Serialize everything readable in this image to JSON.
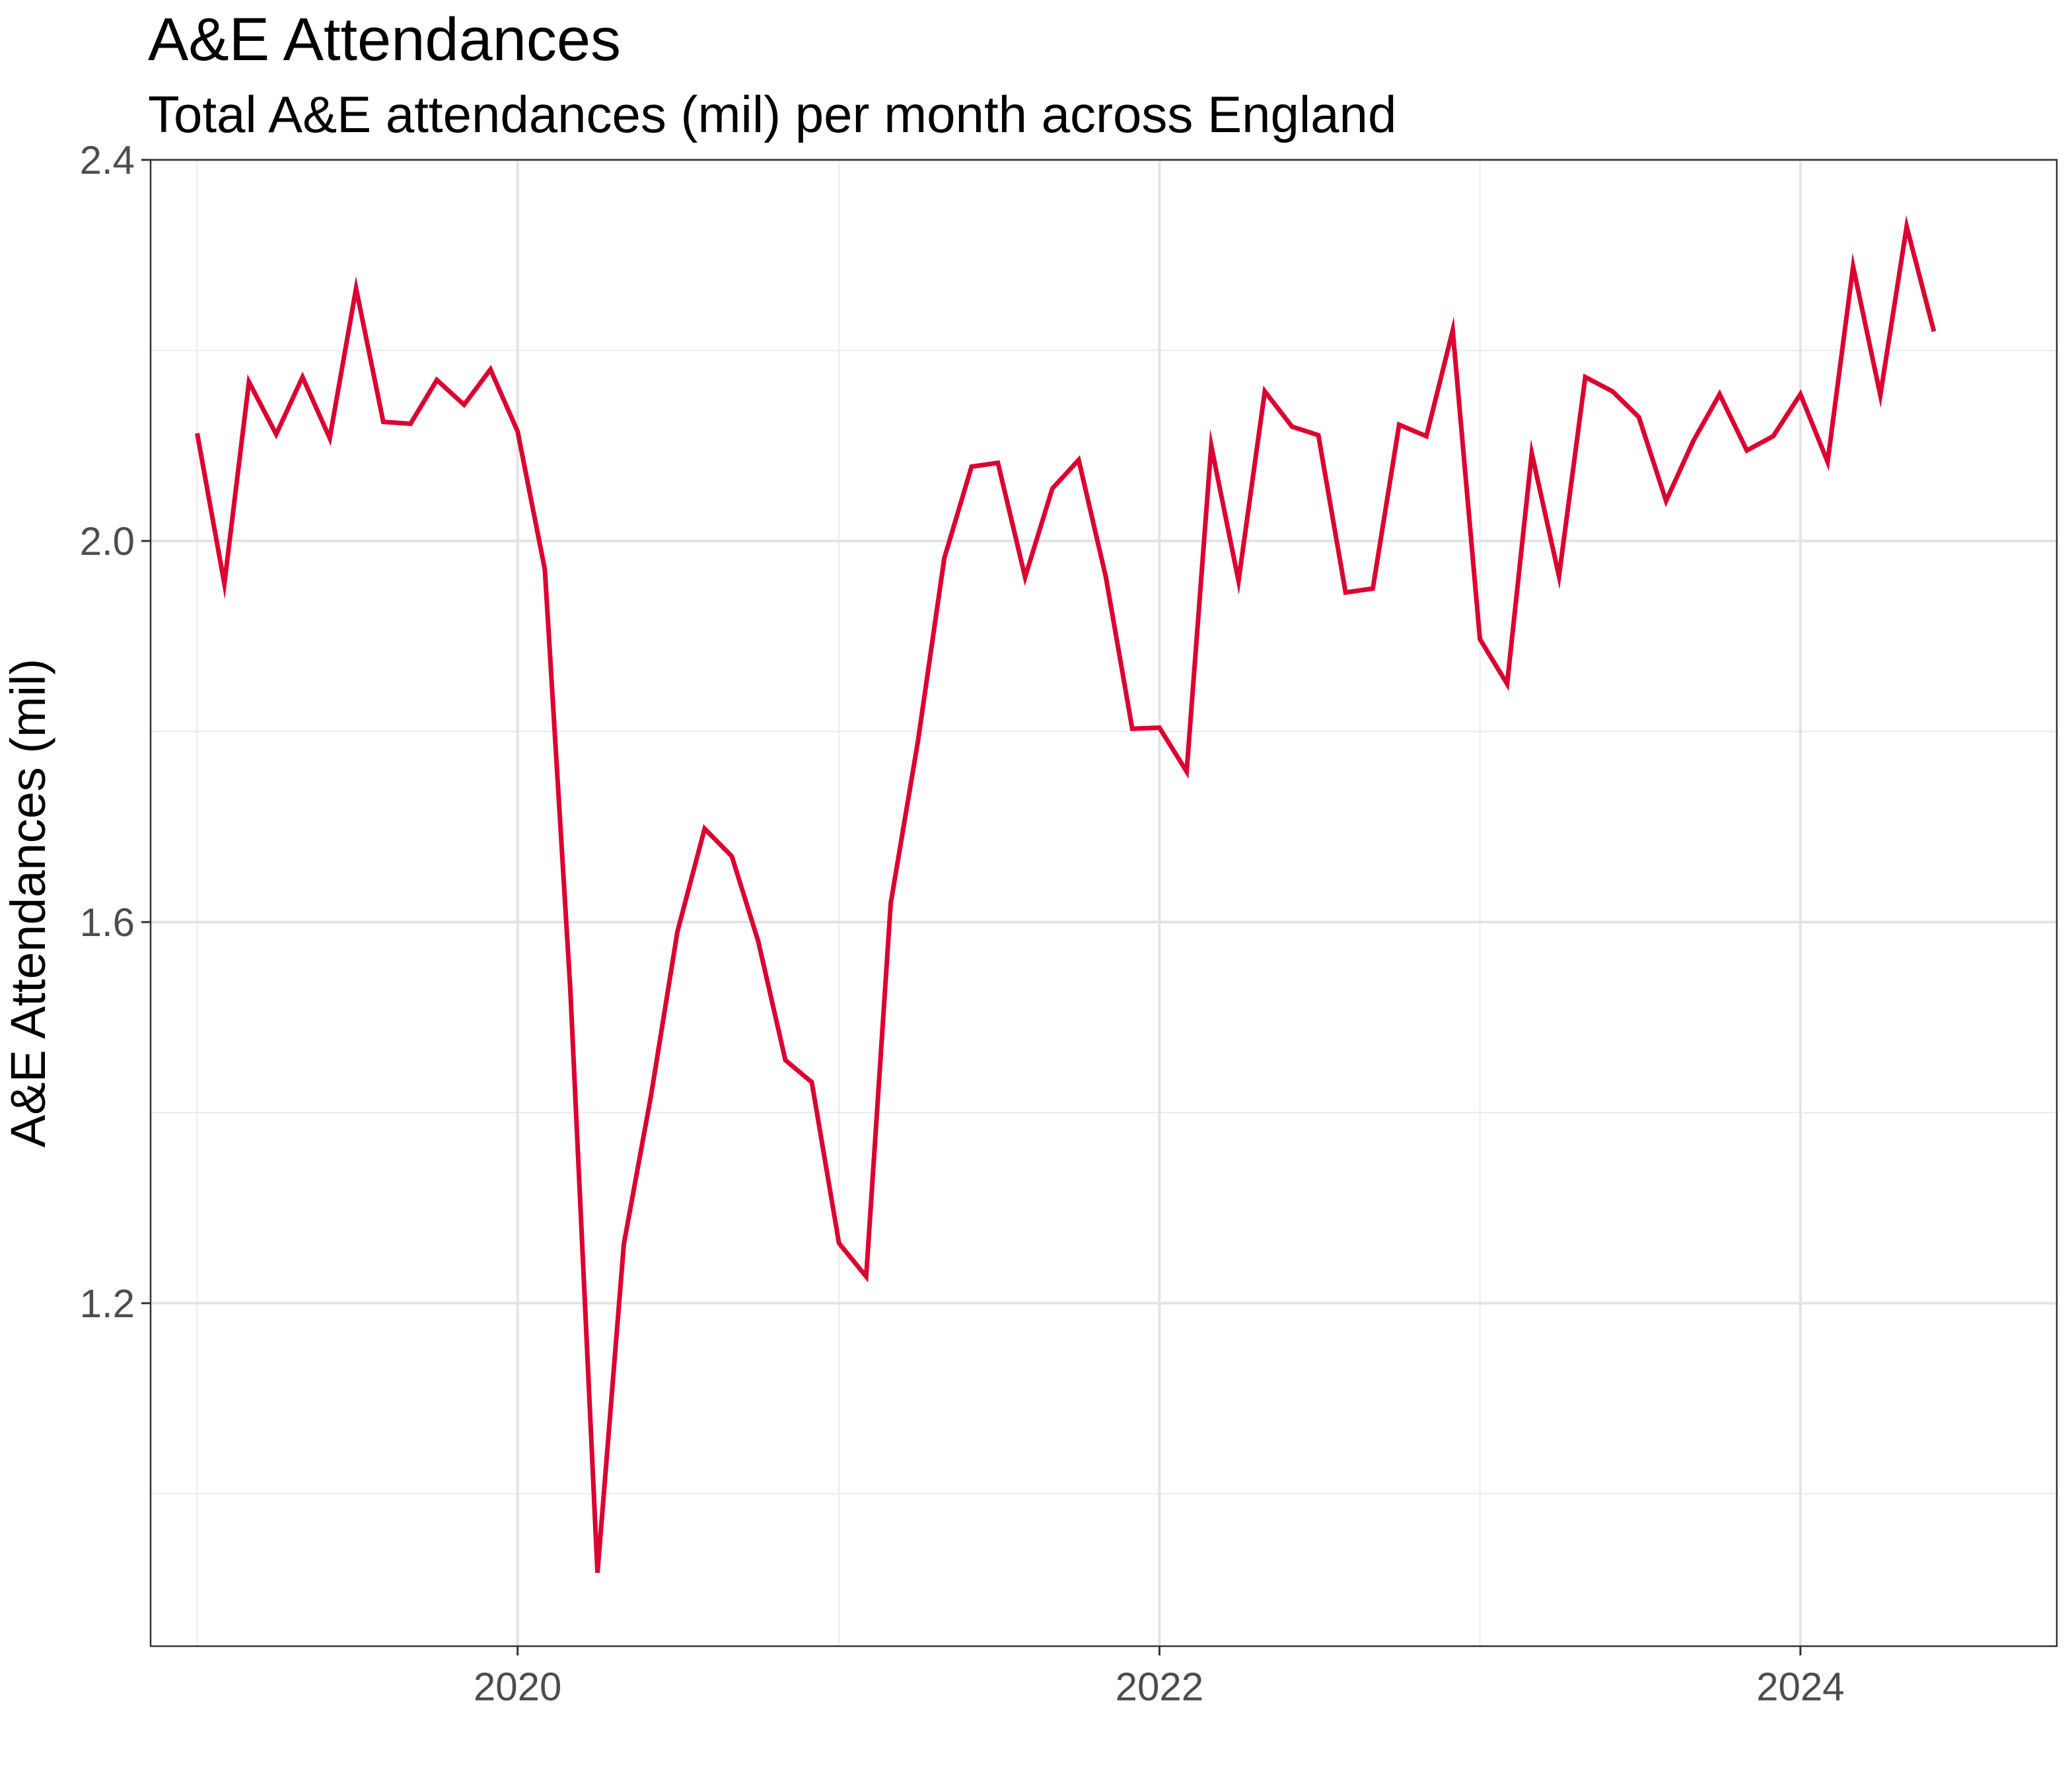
{
  "chart_data": {
    "type": "line",
    "title": "A&E Attendances",
    "subtitle": "Total A&E attendances (mil) per month across England",
    "xlabel": "",
    "ylabel": "A&E Attendances (mil)",
    "ylim": [
      0.84,
      2.4
    ],
    "xlim": [
      "2018-11-09",
      "2024-10-19"
    ],
    "yticks": [
      1.2,
      1.6,
      2.0,
      2.4
    ],
    "yticks_minor": [
      1.0,
      1.4,
      1.8,
      2.2
    ],
    "xticks": [
      "2020-01-01",
      "2022-01-01",
      "2024-01-01"
    ],
    "xtick_labels": [
      "2020",
      "2022",
      "2024"
    ],
    "xticks_minor": [
      "2019-01-01",
      "2021-01-01",
      "2023-01-01"
    ],
    "grid": true,
    "series": [
      {
        "color": "#dc0031",
        "x": [
          "2019-01-01",
          "2019-02-01",
          "2019-03-01",
          "2019-04-01",
          "2019-05-01",
          "2019-06-01",
          "2019-07-01",
          "2019-08-01",
          "2019-09-01",
          "2019-10-01",
          "2019-11-01",
          "2019-12-01",
          "2020-01-01",
          "2020-02-01",
          "2020-03-01",
          "2020-04-01",
          "2020-05-01",
          "2020-06-01",
          "2020-07-01",
          "2020-08-01",
          "2020-09-01",
          "2020-10-01",
          "2020-11-01",
          "2020-12-01",
          "2021-01-01",
          "2021-02-01",
          "2021-03-01",
          "2021-04-01",
          "2021-05-01",
          "2021-06-01",
          "2021-07-01",
          "2021-08-01",
          "2021-09-01",
          "2021-10-01",
          "2021-11-01",
          "2021-12-01",
          "2022-01-01",
          "2022-02-01",
          "2022-03-01",
          "2022-04-01",
          "2022-05-01",
          "2022-06-01",
          "2022-07-01",
          "2022-08-01",
          "2022-09-01",
          "2022-10-01",
          "2022-11-01",
          "2022-12-01",
          "2023-01-01",
          "2023-02-01",
          "2023-03-01",
          "2023-04-01",
          "2023-05-01",
          "2023-06-01",
          "2023-07-01",
          "2023-08-01",
          "2023-09-01",
          "2023-10-01",
          "2023-11-01",
          "2023-12-01",
          "2024-01-01",
          "2024-02-01",
          "2024-03-01",
          "2024-04-01",
          "2024-05-01",
          "2024-06-01"
        ],
        "y": [
          2.113,
          1.955,
          2.167,
          2.112,
          2.172,
          2.108,
          2.265,
          2.125,
          2.123,
          2.169,
          2.143,
          2.18,
          2.115,
          1.97,
          1.53,
          0.917,
          1.262,
          1.418,
          1.59,
          1.698,
          1.669,
          1.58,
          1.455,
          1.432,
          1.263,
          1.228,
          1.62,
          1.79,
          1.982,
          2.078,
          2.082,
          1.962,
          2.055,
          2.085,
          1.962,
          1.803,
          1.804,
          1.758,
          2.1,
          1.958,
          2.157,
          2.12,
          2.111,
          1.946,
          1.95,
          2.122,
          2.11,
          2.221,
          1.897,
          1.85,
          2.092,
          1.963,
          2.172,
          2.157,
          2.13,
          2.042,
          2.105,
          2.154,
          2.095,
          2.11,
          2.154,
          2.083,
          2.288,
          2.153,
          2.33,
          2.22
        ]
      }
    ]
  }
}
